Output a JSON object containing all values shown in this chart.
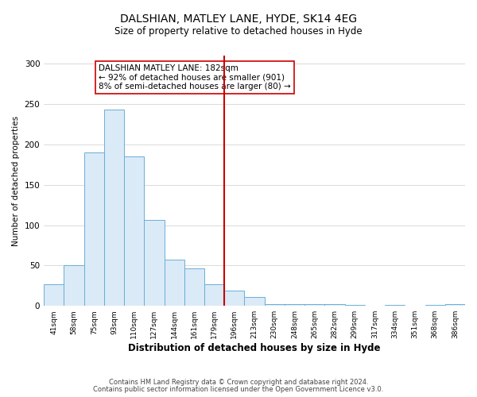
{
  "title": "DALSHIAN, MATLEY LANE, HYDE, SK14 4EG",
  "subtitle": "Size of property relative to detached houses in Hyde",
  "xlabel": "Distribution of detached houses by size in Hyde",
  "ylabel": "Number of detached properties",
  "bar_labels": [
    "41sqm",
    "58sqm",
    "75sqm",
    "93sqm",
    "110sqm",
    "127sqm",
    "144sqm",
    "161sqm",
    "179sqm",
    "196sqm",
    "213sqm",
    "230sqm",
    "248sqm",
    "265sqm",
    "282sqm",
    "299sqm",
    "317sqm",
    "334sqm",
    "351sqm",
    "368sqm",
    "386sqm"
  ],
  "bar_values": [
    27,
    50,
    190,
    243,
    185,
    106,
    57,
    46,
    27,
    19,
    11,
    2,
    2,
    2,
    2,
    1,
    0,
    1,
    0,
    1,
    2
  ],
  "bar_color": "#daeaf7",
  "bar_edge_color": "#6aaed6",
  "vline_color": "#cc0000",
  "annotation_title": "DALSHIAN MATLEY LANE: 182sqm",
  "annotation_line1": "← 92% of detached houses are smaller (901)",
  "annotation_line2": "8% of semi-detached houses are larger (80) →",
  "annotation_box_color": "#ffffff",
  "annotation_box_edge": "#cc0000",
  "footer1": "Contains HM Land Registry data © Crown copyright and database right 2024.",
  "footer2": "Contains public sector information licensed under the Open Government Licence v3.0.",
  "ylim": [
    0,
    310
  ],
  "yticks": [
    0,
    50,
    100,
    150,
    200,
    250,
    300
  ],
  "title_fontsize": 10,
  "subtitle_fontsize": 8.5,
  "xlabel_fontsize": 8.5,
  "ylabel_fontsize": 7.5,
  "tick_fontsize": 6.5,
  "annot_fontsize": 7.5,
  "footer_fontsize": 6.0
}
